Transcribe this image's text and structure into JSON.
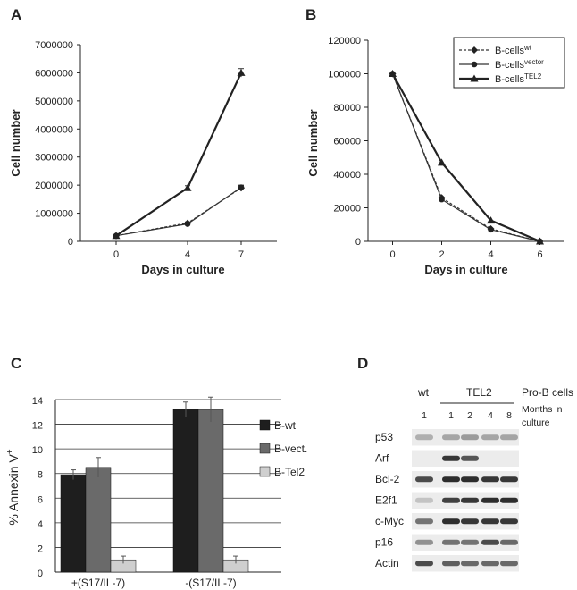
{
  "panels": {
    "a": "A",
    "b": "B",
    "c": "C",
    "d": "D"
  },
  "chart_data": [
    {
      "id": "A",
      "type": "line",
      "xlabel": "Days in culture",
      "ylabel": "Cell number",
      "x": [
        0,
        4,
        7
      ],
      "ylim": [
        0,
        7000000
      ],
      "yticks": [
        "0",
        "1000000",
        "2000000",
        "3000000",
        "4000000",
        "5000000",
        "6000000",
        "7000000"
      ],
      "series": [
        {
          "values": [
            200000,
            650000,
            1900000
          ],
          "error": [
            0,
            40000,
            90000
          ],
          "style": "dashed",
          "marker": "diamond"
        },
        {
          "values": [
            200000,
            620000,
            1920000
          ],
          "error": [
            0,
            30000,
            80000
          ],
          "style": "solid",
          "marker": "circle"
        },
        {
          "values": [
            200000,
            1900000,
            6000000
          ],
          "error": [
            0,
            80000,
            150000
          ],
          "style": "thick",
          "marker": "triangle"
        }
      ]
    },
    {
      "id": "B",
      "type": "line",
      "xlabel": "Days in culture",
      "ylabel": "Cell number",
      "x": [
        0,
        2,
        4,
        6
      ],
      "ylim": [
        0,
        120000
      ],
      "yticks": [
        "0",
        "20000",
        "40000",
        "60000",
        "80000",
        "100000",
        "120000"
      ],
      "legend": [
        {
          "base": "B-cells",
          "sup": "wt",
          "style": "dashed",
          "marker": "diamond"
        },
        {
          "base": "B-cells",
          "sup": "vector",
          "style": "solid",
          "marker": "circle"
        },
        {
          "base": "B-cells",
          "sup": "TEL2",
          "style": "thick",
          "marker": "triangle"
        }
      ],
      "legend_position": "top-right",
      "series": [
        {
          "name": "B-cells wt",
          "values": [
            100000,
            26000,
            7500,
            0
          ]
        },
        {
          "name": "B-cells vector",
          "values": [
            100000,
            25000,
            7000,
            0
          ]
        },
        {
          "name": "B-cells TEL2",
          "values": [
            100000,
            47000,
            12500,
            0
          ]
        }
      ]
    },
    {
      "id": "C",
      "type": "bar",
      "ylabel_base": "% Annexin V",
      "ylabel_sup": "+",
      "ylim": [
        0,
        14
      ],
      "yticks": [
        "0",
        "2",
        "4",
        "6",
        "8",
        "10",
        "12",
        "14"
      ],
      "grid": true,
      "categories": [
        "+(S17/IL-7)",
        "-(S17/IL-7)"
      ],
      "series": [
        {
          "name": "B-wt",
          "values": [
            7.9,
            13.2
          ],
          "error": [
            0.4,
            0.6
          ],
          "color": "#1e1e1e"
        },
        {
          "name": "B-vect.",
          "values": [
            8.5,
            13.2
          ],
          "error": [
            0.8,
            1.0
          ],
          "color": "#6a6a6a"
        },
        {
          "name": "B-Tel2",
          "values": [
            1.0,
            1.0
          ],
          "error": [
            0.3,
            0.3
          ],
          "color": "#cfcfcf"
        }
      ]
    }
  ],
  "blot": {
    "header": {
      "wt": "wt",
      "tel2": "TEL2",
      "pro_b": "Pro-B cells",
      "months_1": "Months in",
      "months_2": "culture"
    },
    "lanes": [
      "1",
      "1",
      "2",
      "4",
      "8"
    ],
    "rows": [
      {
        "label": "p53",
        "bands": [
          0.25,
          0.3,
          0.35,
          0.3,
          0.3
        ]
      },
      {
        "label": "Arf",
        "bands": [
          0.0,
          0.85,
          0.7,
          0.0,
          0.0
        ]
      },
      {
        "label": "Bcl-2",
        "bands": [
          0.75,
          0.9,
          0.9,
          0.85,
          0.85
        ]
      },
      {
        "label": "E2f1",
        "bands": [
          0.15,
          0.8,
          0.85,
          0.9,
          0.9
        ]
      },
      {
        "label": "c-Myc",
        "bands": [
          0.55,
          0.9,
          0.85,
          0.85,
          0.85
        ]
      },
      {
        "label": "p16",
        "bands": [
          0.4,
          0.55,
          0.55,
          0.75,
          0.6
        ]
      },
      {
        "label": "Actin",
        "bands": [
          0.75,
          0.65,
          0.6,
          0.6,
          0.6
        ]
      }
    ]
  }
}
